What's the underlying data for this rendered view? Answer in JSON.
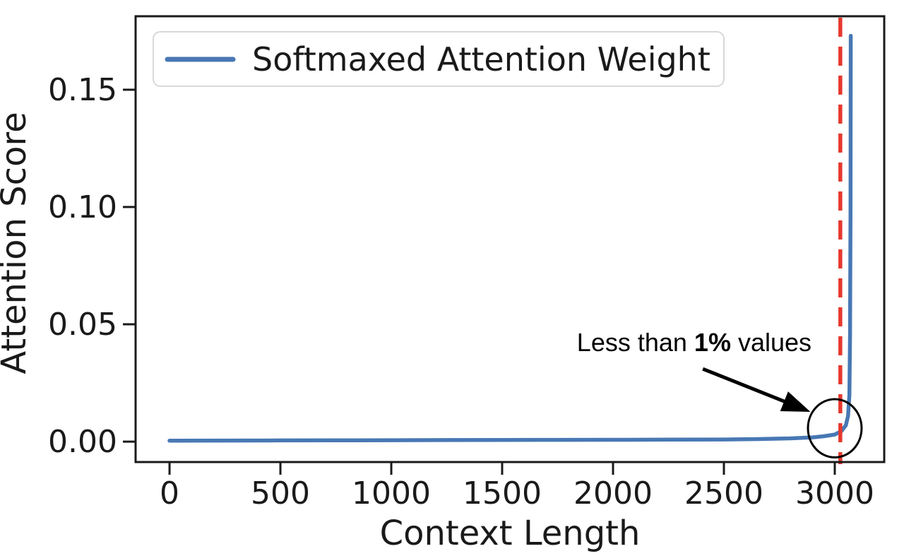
{
  "figure": {
    "background": "#ffffff",
    "text_color": "#1a1a1a"
  },
  "chart_data": {
    "type": "line",
    "title": "",
    "xlabel": "Context Length",
    "ylabel": "Attention Score",
    "xlim": [
      -153,
      3223
    ],
    "ylim": [
      -0.0087,
      0.1813
    ],
    "xticks": [
      0,
      500,
      1000,
      1500,
      2000,
      2500,
      3000
    ],
    "xtick_labels": [
      "0",
      "500",
      "1000",
      "1500",
      "2000",
      "2500",
      "3000"
    ],
    "yticks": [
      0,
      0.05,
      0.1,
      0.15
    ],
    "ytick_labels": [
      "0.00",
      "0.05",
      "0.10",
      "0.15"
    ],
    "grid": false,
    "legend": {
      "position": "upper-left",
      "entries": [
        {
          "label": "Softmaxed Attention Weight",
          "color": "#4878B4"
        }
      ]
    },
    "series": [
      {
        "name": "Softmaxed Attention Weight",
        "color": "#4878B4",
        "line_width": 5.5,
        "points": [
          [
            0,
            0.0004
          ],
          [
            250,
            0.00045
          ],
          [
            500,
            0.0005
          ],
          [
            750,
            0.00055
          ],
          [
            1000,
            0.0006
          ],
          [
            1250,
            0.00065
          ],
          [
            1500,
            0.0007
          ],
          [
            1750,
            0.00075
          ],
          [
            2000,
            0.0008
          ],
          [
            2250,
            0.00085
          ],
          [
            2500,
            0.0009
          ],
          [
            2650,
            0.0011
          ],
          [
            2800,
            0.0014
          ],
          [
            2900,
            0.0018
          ],
          [
            2950,
            0.0023
          ],
          [
            3000,
            0.003
          ],
          [
            3030,
            0.0045
          ],
          [
            3050,
            0.007
          ],
          [
            3060,
            0.011
          ],
          [
            3066,
            0.02
          ],
          [
            3069,
            0.045
          ],
          [
            3071,
            0.1
          ],
          [
            3072,
            0.173
          ]
        ]
      }
    ],
    "vline": {
      "x": 3025,
      "color": "#E6372D",
      "style": "dashed",
      "width": 5.5
    },
    "annotation": {
      "text_prefix": "Less than ",
      "text_bold": "1%",
      "text_suffix": " values",
      "text_center": [
        2366,
        0.0425
      ],
      "arrow_from": [
        2405,
        0.031
      ],
      "arrow_to": [
        2890,
        0.0127
      ],
      "circle_center": [
        3000,
        0.0057
      ],
      "circle_rx": 121,
      "circle_ry": 0.0124
    }
  }
}
